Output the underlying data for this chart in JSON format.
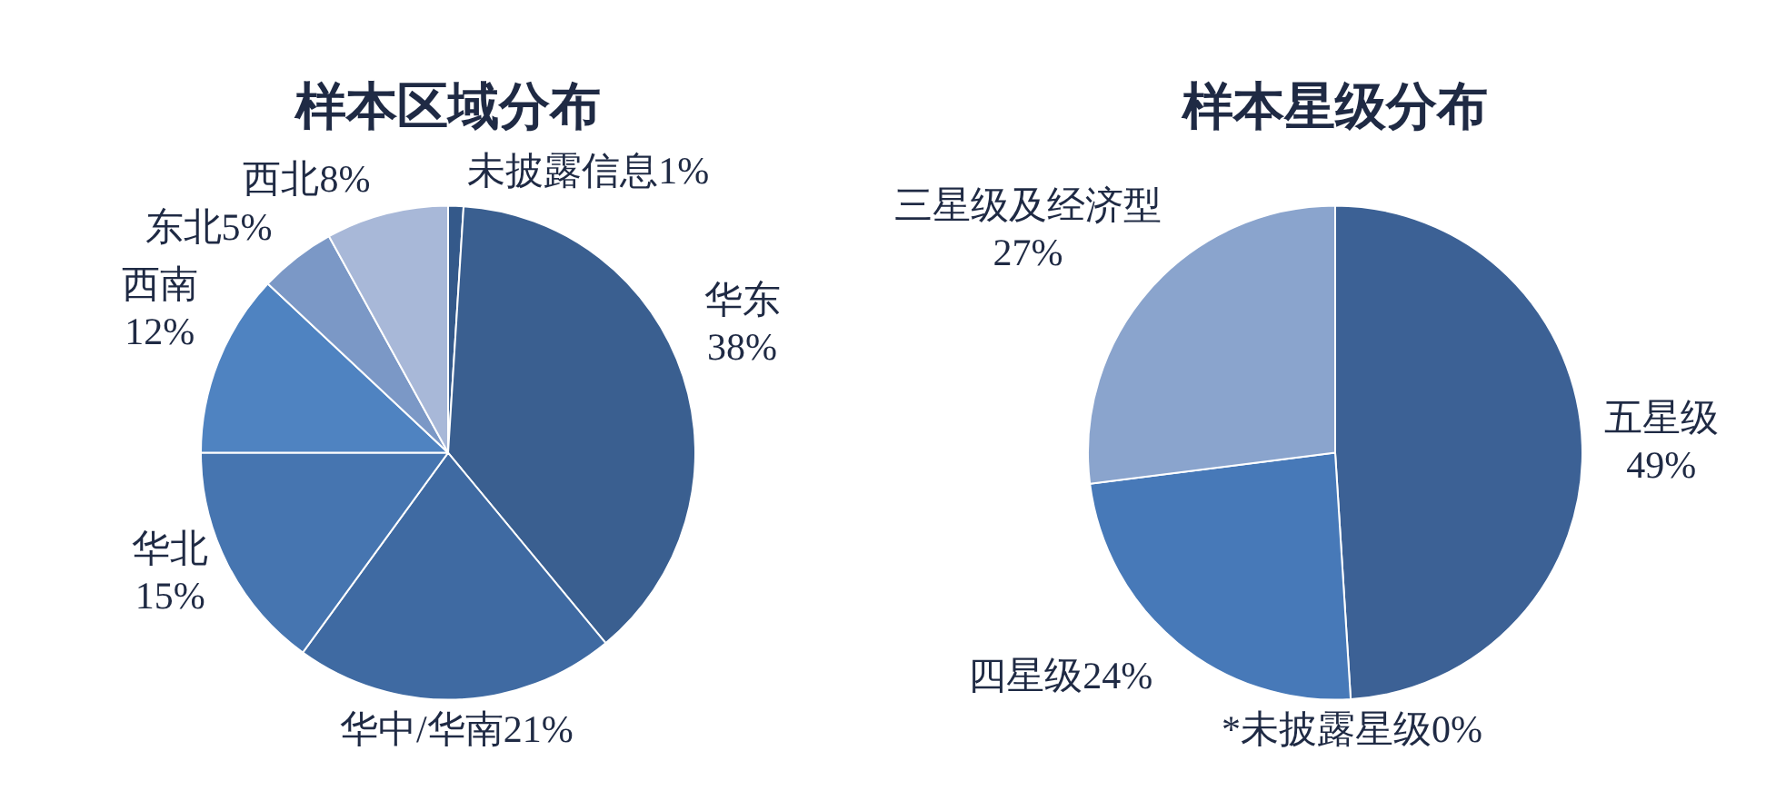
{
  "chart_data": [
    {
      "type": "pie",
      "title": "样本区域分布",
      "categories": [
        "未披露信息",
        "华东",
        "华中/华南",
        "华北",
        "西南",
        "东北",
        "西北"
      ],
      "values": [
        1,
        38,
        21,
        15,
        12,
        5,
        8
      ],
      "value_labels": [
        "1%",
        "38%",
        "21%",
        "15%",
        "12%",
        "5%",
        "8%"
      ],
      "colors": [
        "#34598a",
        "#3a5f90",
        "#3f6aa2",
        "#4675b0",
        "#4f83c1",
        "#7b98c6",
        "#a8b8d8"
      ],
      "legend": false
    },
    {
      "type": "pie",
      "title": "样本星级分布",
      "categories": [
        "五星级",
        "*未披露星级",
        "四星级",
        "三星级及经济型"
      ],
      "values": [
        49,
        0,
        24,
        27
      ],
      "value_labels": [
        "49%",
        "0%",
        "24%",
        "27%"
      ],
      "colors": [
        "#3c6195",
        "#3a5f90",
        "#4779b8",
        "#8aa4cd"
      ],
      "legend": false
    }
  ]
}
